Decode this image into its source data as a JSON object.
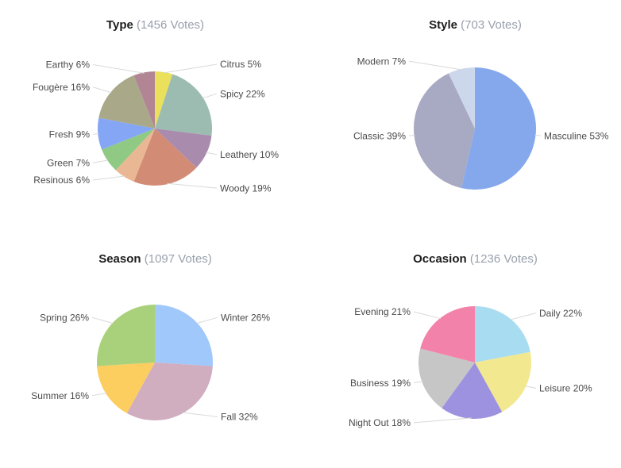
{
  "styles": {
    "background": "#ffffff",
    "title_color": "#1c1c1e",
    "votes_color": "#99a1ad",
    "label_color": "#4a4a4a",
    "leader_line_color": "#d9d9d9"
  },
  "chart_data": [
    {
      "type": "pie",
      "title": "Type",
      "votes_label": "(1456 Votes)",
      "categories": [
        "Citrus",
        "Spicy",
        "Leathery",
        "Woody",
        "Resinous",
        "Green",
        "Fresh",
        "Fougère",
        "Earthy"
      ],
      "values": [
        5,
        22,
        10,
        19,
        6,
        7,
        9,
        16,
        6
      ],
      "colors": [
        "#EAE05C",
        "#9CBCB1",
        "#A98BAE",
        "#D28C76",
        "#EAB795",
        "#8FC983",
        "#85A6F5",
        "#A9A98A",
        "#B28594"
      ],
      "label_format": "{category} {value}%",
      "start_angle_deg": 0,
      "direction": "clockwise",
      "legend": "outside-labels-with-leader-lines",
      "radius_px": 72
    },
    {
      "type": "pie",
      "title": "Style",
      "votes_label": "(703 Votes)",
      "categories": [
        "Masculine",
        "Classic",
        "Modern"
      ],
      "values": [
        53,
        39,
        7
      ],
      "colors": [
        "#85A8EC",
        "#A8A9C3",
        "#CDD7EC"
      ],
      "label_format": "{category} {value}%",
      "start_angle_deg": 0,
      "direction": "clockwise",
      "legend": "outside-labels-with-leader-lines",
      "radius_px": 77
    },
    {
      "type": "pie",
      "title": "Season",
      "votes_label": "(1097 Votes)",
      "categories": [
        "Winter",
        "Fall",
        "Summer",
        "Spring"
      ],
      "values": [
        26,
        32,
        16,
        26
      ],
      "colors": [
        "#A0C8FA",
        "#D0ADBF",
        "#FCCD5F",
        "#A9D17B"
      ],
      "label_format": "{category} {value}%",
      "start_angle_deg": 0,
      "direction": "clockwise",
      "legend": "outside-labels-with-leader-lines",
      "radius_px": 73
    },
    {
      "type": "pie",
      "title": "Occasion",
      "votes_label": "(1236 Votes)",
      "categories": [
        "Daily",
        "Leisure",
        "Night Out",
        "Business",
        "Evening"
      ],
      "values": [
        22,
        20,
        18,
        19,
        21
      ],
      "colors": [
        "#A8DCF0",
        "#F2E88F",
        "#9D92E0",
        "#C6C6C6",
        "#F382AA"
      ],
      "label_format": "{category} {value}%",
      "start_angle_deg": 0,
      "direction": "clockwise",
      "legend": "outside-labels-with-leader-lines",
      "radius_px": 71
    }
  ]
}
